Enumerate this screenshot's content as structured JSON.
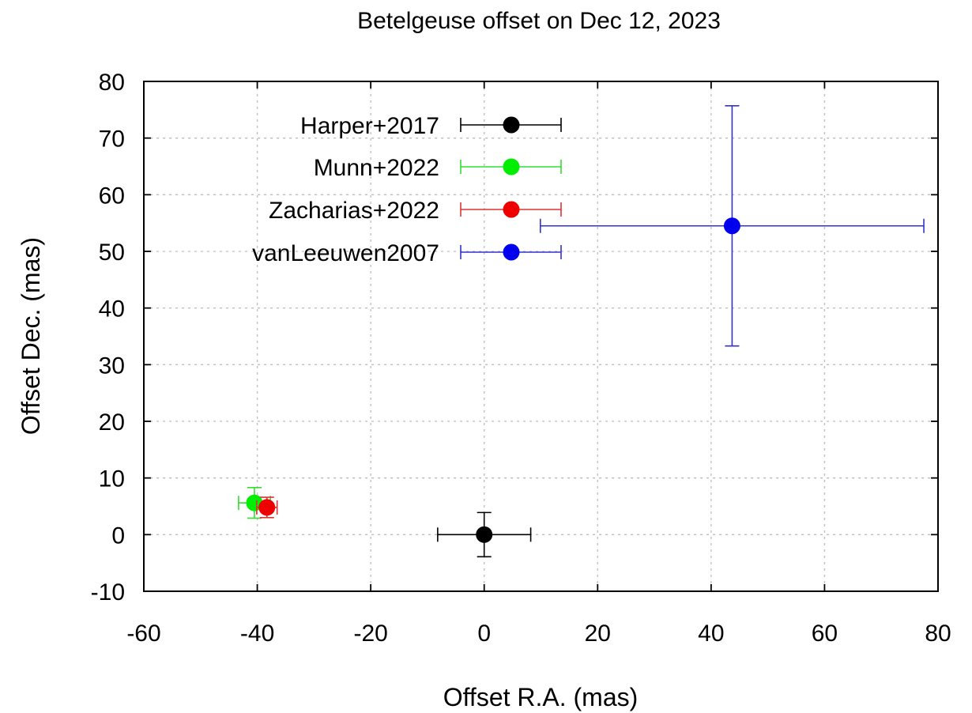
{
  "chart_data": {
    "type": "scatter",
    "title": "Betelgeuse offset on Dec 12, 2023",
    "xlabel": "Offset R.A. (mas)",
    "ylabel": "Offset Dec. (mas)",
    "xlim": [
      -60,
      80
    ],
    "ylim": [
      -10,
      80
    ],
    "xticks": [
      -60,
      -40,
      -20,
      0,
      20,
      40,
      60,
      80
    ],
    "yticks": [
      -10,
      0,
      10,
      20,
      30,
      40,
      50,
      60,
      70,
      80
    ],
    "grid": true,
    "legend_position": "top-left",
    "series": [
      {
        "name": "Harper+2017",
        "color": "#000000",
        "error_color": "#000000",
        "points": [
          {
            "x": 0,
            "y": 0,
            "xerr": 8.2,
            "yerr": 3.9
          }
        ]
      },
      {
        "name": "Munn+2022",
        "color": "#00ee00",
        "error_color": "#33dd33",
        "points": [
          {
            "x": -40.5,
            "y": 5.6,
            "xerr": 2.8,
            "yerr": 2.7
          }
        ]
      },
      {
        "name": "Zacharias+2022",
        "color": "#ee0000",
        "error_color": "#dd3333",
        "points": [
          {
            "x": -38.3,
            "y": 4.8,
            "xerr": 1.8,
            "yerr": 1.8
          }
        ]
      },
      {
        "name": "vanLeeuwen2007",
        "color": "#0000ee",
        "error_color": "#3333cc",
        "points": [
          {
            "x": 43.7,
            "y": 54.5,
            "xerr": 33.8,
            "yerr": 21.2
          }
        ]
      }
    ]
  }
}
